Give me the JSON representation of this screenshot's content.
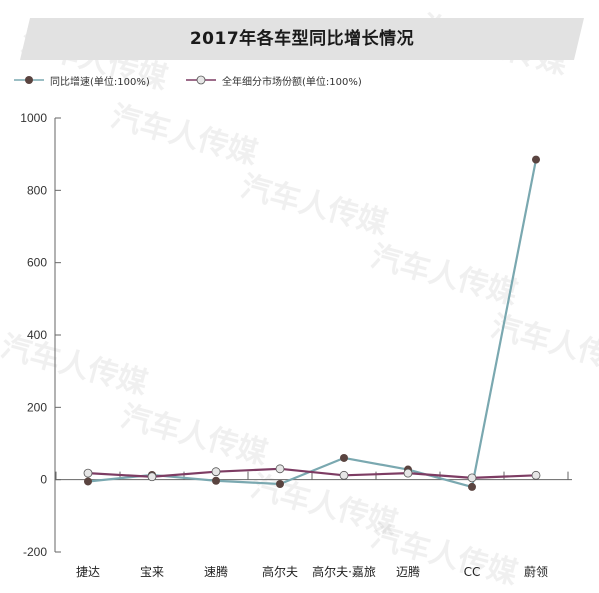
{
  "title": "2017年各车型同比增长情况",
  "watermark_text": "汽车人传媒",
  "colors": {
    "banner": "#e2e2e2",
    "series_growth": "#7aa8b0",
    "series_share": "#7d3c63",
    "marker_growth": "#5a4440",
    "marker_share": "#e6e6e6",
    "axis": "#666666"
  },
  "chart_data": {
    "type": "line",
    "title": "2017年各车型同比增长情况",
    "xlabel": "",
    "ylabel": "",
    "ylim": [
      -200,
      1000
    ],
    "yticks": [
      -200,
      0,
      200,
      400,
      600,
      800,
      1000
    ],
    "categories": [
      "捷达",
      "宝来",
      "速腾",
      "高尔夫",
      "高尔夫·嘉旅",
      "迈腾",
      "CC",
      "蔚领"
    ],
    "legend_position": "top-left",
    "grid": false,
    "series": [
      {
        "name": "同比增速(单位:100%)",
        "color": "#7aa8b0",
        "marker_color": "#5a4440",
        "values": [
          -5,
          13,
          -3,
          -12,
          60,
          28,
          -20,
          885
        ]
      },
      {
        "name": "全年细分市场份额(单位:100%)",
        "color": "#7d3c63",
        "marker_color": "#e6e6e6",
        "values": [
          18,
          8,
          22,
          30,
          12,
          18,
          5,
          12
        ]
      }
    ]
  }
}
